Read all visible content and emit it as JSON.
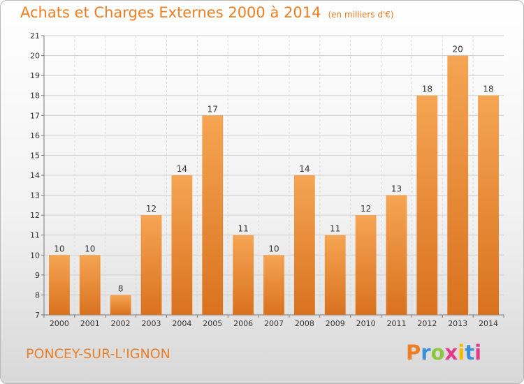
{
  "chart_data": {
    "type": "bar",
    "title": "Achats et Charges Externes 2000 à 2014",
    "unit_label": "(en milliers d'€)",
    "categories": [
      "2000",
      "2001",
      "2002",
      "2003",
      "2004",
      "2005",
      "2006",
      "2007",
      "2008",
      "2009",
      "2010",
      "2011",
      "2012",
      "2013",
      "2014"
    ],
    "values": [
      10,
      10,
      8,
      12,
      14,
      17,
      11,
      10,
      14,
      11,
      12,
      13,
      18,
      20,
      18
    ],
    "ylim": [
      7,
      21
    ],
    "yticks": [
      7,
      8,
      9,
      10,
      11,
      12,
      13,
      14,
      15,
      16,
      17,
      18,
      19,
      20,
      21
    ],
    "grid": true,
    "bar_color_top": "#f5a553",
    "bar_color_bottom": "#d9721f"
  },
  "footer": {
    "town": "PONCEY-SUR-L'IGNON",
    "brand": "Proxiti",
    "brand_colors": [
      "#f07d22",
      "#3a8fd6",
      "#8dc63f",
      "#e23a8a",
      "#f5b800",
      "#3a8fd6",
      "#e23a8a"
    ]
  }
}
